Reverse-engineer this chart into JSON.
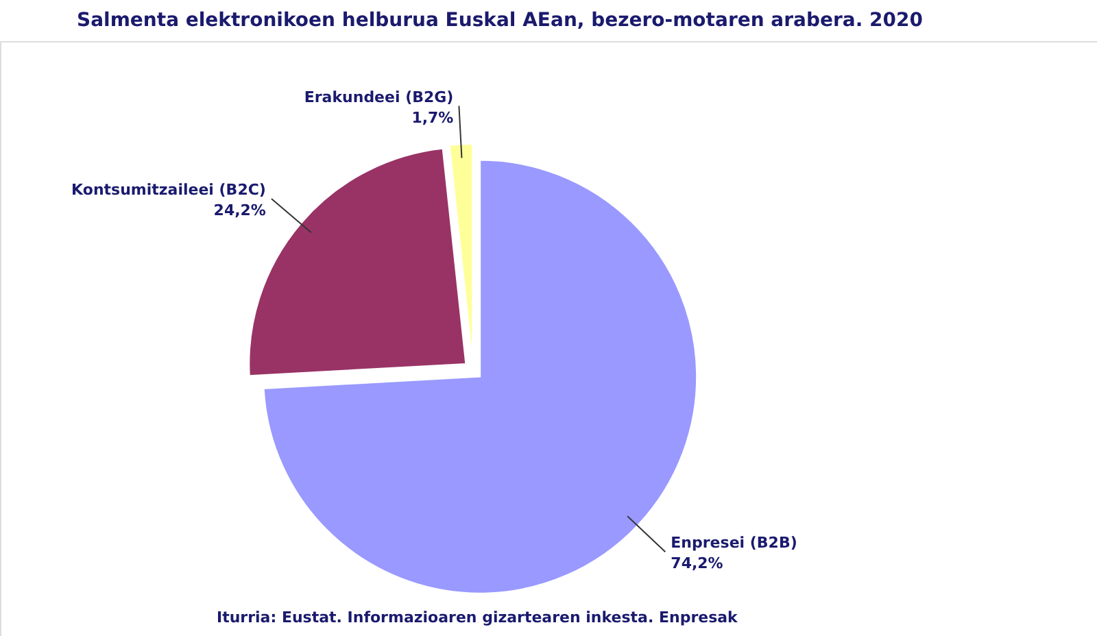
{
  "chart_data": {
    "type": "pie",
    "title": "Salmenta elektronikoen helburua Euskal AEan, bezero-motaren arabera. 2020",
    "categories": [
      "Enpresei (B2B)",
      "Kontsumitzaileei (B2C)",
      "Erakundeei (B2G)"
    ],
    "values": [
      74.2,
      24.2,
      1.7
    ],
    "value_labels": [
      "74,2%",
      "24,2%",
      "1,7%"
    ],
    "colors": [
      "#9999ff",
      "#993366",
      "#ffff99"
    ],
    "annotations": [
      "Iturria: Eustat. Informazioaren gizartearen inkesta. Enpresak"
    ]
  }
}
